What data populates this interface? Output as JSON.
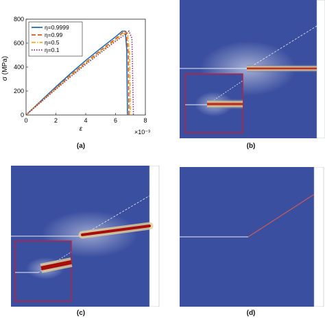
{
  "panels": {
    "a": {
      "label": "(a)"
    },
    "b": {
      "label": "(b)"
    },
    "c": {
      "label": "(c)"
    },
    "d": {
      "label": "(d)"
    }
  },
  "colors": {
    "field_blue": "#3a4fa0",
    "field_edge": "#4a5cab",
    "crack_red": "#a80d0d",
    "crack_glow": "#e2cf9a",
    "inset_border": "#b7243f",
    "crack_path": "#e8ecf6"
  },
  "chart_data": {
    "type": "line",
    "title": "",
    "xlabel": "ε",
    "ylabel": "σ (MPa)",
    "x_scale_label": "×10⁻³",
    "xlim": [
      0,
      8
    ],
    "ylim": [
      0,
      800
    ],
    "x_ticks": [
      "0",
      "2",
      "4",
      "6",
      "8"
    ],
    "y_ticks": [
      "0",
      "200",
      "400",
      "600",
      "800"
    ],
    "legend_position": "top-left",
    "series": [
      {
        "name": "η=0.9999",
        "color": "#1f6fb5",
        "style": "solid",
        "x": [
          0,
          1,
          2,
          3,
          4,
          5,
          6,
          6.45,
          6.65,
          6.75,
          6.8
        ],
        "y": [
          0,
          118,
          235,
          348,
          455,
          556,
          653,
          700,
          700,
          550,
          0
        ]
      },
      {
        "name": "η=0.99",
        "color": "#d9531e",
        "style": "dashed",
        "x": [
          0,
          1,
          2,
          3,
          4,
          5,
          6,
          6.5,
          6.7,
          6.85,
          6.9
        ],
        "y": [
          0,
          113,
          225,
          334,
          438,
          540,
          636,
          690,
          695,
          520,
          0
        ]
      },
      {
        "name": "η=0.5",
        "color": "#edb120",
        "style": "dashdot",
        "x": [
          0,
          1,
          2,
          3,
          4,
          5,
          6,
          6.55,
          6.8,
          6.95,
          7.0
        ],
        "y": [
          0,
          110,
          220,
          327,
          430,
          530,
          625,
          680,
          690,
          500,
          0
        ]
      },
      {
        "name": "η=0.1",
        "color": "#7e2f8e",
        "style": "dotted",
        "x": [
          0,
          1,
          2,
          3,
          4,
          5,
          6,
          6.6,
          6.9,
          7.1,
          7.2
        ],
        "y": [
          0,
          108,
          215,
          320,
          422,
          520,
          615,
          668,
          700,
          640,
          0
        ]
      }
    ]
  }
}
